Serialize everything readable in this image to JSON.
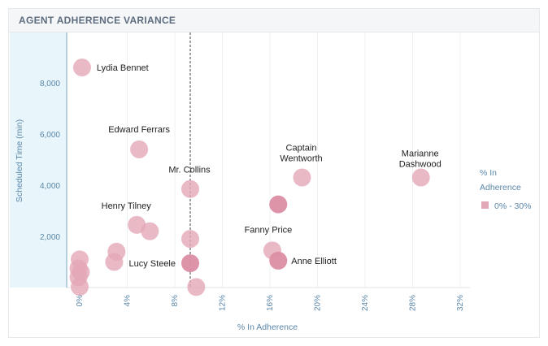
{
  "panel": {
    "title": "AGENT ADHERENCE VARIANCE"
  },
  "chart_data": {
    "type": "scatter",
    "xlabel": "% In Adherence",
    "ylabel": "Scheduled Time (min)",
    "xlim": [
      -1,
      33
    ],
    "ylim": [
      0,
      9200
    ],
    "x_ticks": [
      0,
      4,
      8,
      12,
      16,
      20,
      24,
      28,
      32
    ],
    "x_tick_labels": [
      "0%",
      "4%",
      "8%",
      "12%",
      "16%",
      "20%",
      "24%",
      "28%",
      "32%"
    ],
    "y_ticks": [
      2000,
      4000,
      6000,
      8000
    ],
    "y_tick_labels": [
      "2,000",
      "4,000",
      "6,000",
      "8,000"
    ],
    "reference_line_x": 9.3,
    "legend": {
      "title": "% In Adherence",
      "items": [
        {
          "label": "0% - 30%",
          "color": "#e3a8b8"
        }
      ]
    },
    "points": [
      {
        "x": 0.2,
        "y": 8600,
        "label": "Lydia Bennet"
      },
      {
        "x": 5.0,
        "y": 5400,
        "label": "Edward Ferrars"
      },
      {
        "x": 9.3,
        "y": 3850,
        "label": "Mr. Collins"
      },
      {
        "x": 18.7,
        "y": 4300,
        "label": "Captain Wentworth"
      },
      {
        "x": 28.7,
        "y": 4300,
        "label": "Marianne Dashwood"
      },
      {
        "x": 4.8,
        "y": 2450,
        "label": "Henry Tilney"
      },
      {
        "x": 5.9,
        "y": 2200,
        "label": ""
      },
      {
        "x": 9.3,
        "y": 1900,
        "label": ""
      },
      {
        "x": 16.7,
        "y": 3250,
        "label": "",
        "highlight": true
      },
      {
        "x": 16.2,
        "y": 1450,
        "label": "Fanny Price"
      },
      {
        "x": 16.7,
        "y": 1050,
        "label": "Anne Elliott",
        "highlight": true
      },
      {
        "x": 3.1,
        "y": 1400,
        "label": ""
      },
      {
        "x": 2.9,
        "y": 1000,
        "label": ""
      },
      {
        "x": 9.3,
        "y": 950,
        "label": "Lucy Steele",
        "highlight": true
      },
      {
        "x": 0.0,
        "y": 1100,
        "label": ""
      },
      {
        "x": -0.1,
        "y": 750,
        "label": ""
      },
      {
        "x": 0.1,
        "y": 600,
        "label": ""
      },
      {
        "x": -0.1,
        "y": 400,
        "label": ""
      },
      {
        "x": 0.0,
        "y": 30,
        "label": ""
      },
      {
        "x": 9.8,
        "y": 20,
        "label": ""
      }
    ],
    "colors": {
      "point": "#e3a8b8",
      "point_highlight": "#dc8ea3",
      "axis": "#8fb4cc",
      "reference": "#444444",
      "y_band": "#e8f6fc"
    }
  }
}
